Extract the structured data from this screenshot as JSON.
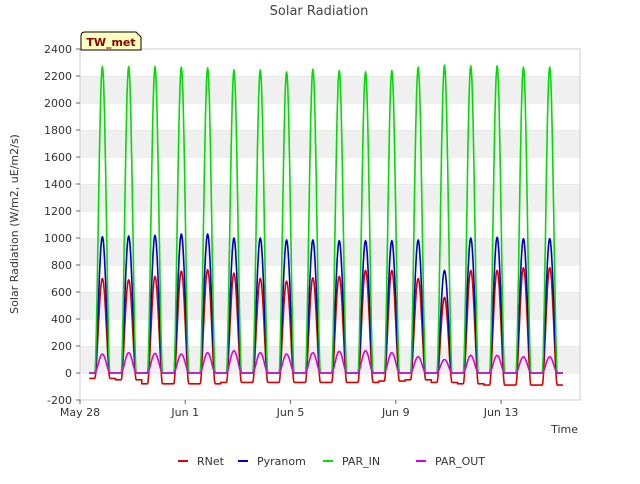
{
  "chart_data": {
    "type": "line",
    "title": "Solar Radiation",
    "xlabel": "Time",
    "ylabel": "Solar Radiation (W/m2, uE/m2/s)",
    "station_badge": "TW_met",
    "ylim": [
      -200,
      2400
    ],
    "yticks": [
      -200,
      0,
      200,
      400,
      600,
      800,
      1000,
      1200,
      1400,
      1600,
      1800,
      2000,
      2200,
      2400
    ],
    "xlim_days": [
      0,
      19
    ],
    "xticks": [
      {
        "label": "May 28",
        "day": 0
      },
      {
        "label": "Jun 1",
        "day": 4
      },
      {
        "label": "Jun 5",
        "day": 8
      },
      {
        "label": "Jun 9",
        "day": 12
      },
      {
        "label": "Jun 13",
        "day": 16
      }
    ],
    "grid": "horizontal bands",
    "legend_position": "bottom-center",
    "days": [
      "May 28",
      "May 29",
      "May 30",
      "May 31",
      "Jun 1",
      "Jun 2",
      "Jun 3",
      "Jun 4",
      "Jun 5",
      "Jun 6",
      "Jun 7",
      "Jun 8",
      "Jun 9",
      "Jun 10",
      "Jun 11",
      "Jun 12",
      "Jun 13",
      "Jun 14"
    ],
    "series": [
      {
        "name": "RNet",
        "color": "#dd0000",
        "daily_peak": [
          700,
          690,
          715,
          755,
          765,
          740,
          700,
          680,
          705,
          715,
          760,
          760,
          700,
          560,
          760,
          760,
          780,
          780
        ],
        "night_value": [
          -40,
          -50,
          -80,
          -80,
          -80,
          -70,
          -70,
          -70,
          -70,
          -70,
          -70,
          -60,
          -50,
          -70,
          -80,
          -90,
          -90,
          -90
        ]
      },
      {
        "name": "Pyranom",
        "color": "#0000cc",
        "daily_peak": [
          1010,
          1015,
          1020,
          1030,
          1030,
          1000,
          1000,
          985,
          985,
          980,
          980,
          980,
          985,
          760,
          1000,
          1005,
          995,
          995
        ],
        "night_value": [
          0,
          0,
          0,
          0,
          0,
          0,
          0,
          0,
          0,
          0,
          0,
          0,
          0,
          0,
          0,
          0,
          0,
          0
        ]
      },
      {
        "name": "PAR_IN",
        "color": "#00dd00",
        "daily_peak": [
          2270,
          2270,
          2270,
          2265,
          2260,
          2245,
          2245,
          2230,
          2250,
          2240,
          2230,
          2240,
          2265,
          2280,
          2275,
          2275,
          2265,
          2265
        ],
        "night_value": [
          0,
          0,
          0,
          0,
          0,
          0,
          0,
          0,
          0,
          0,
          0,
          0,
          0,
          0,
          0,
          0,
          0,
          0
        ]
      },
      {
        "name": "PAR_OUT",
        "color": "#dd00dd",
        "daily_peak": [
          140,
          150,
          145,
          140,
          150,
          165,
          150,
          140,
          150,
          160,
          165,
          150,
          120,
          100,
          130,
          130,
          120,
          120
        ],
        "night_value": [
          0,
          0,
          0,
          0,
          0,
          0,
          0,
          0,
          0,
          0,
          0,
          0,
          0,
          0,
          0,
          0,
          0,
          0
        ]
      }
    ]
  }
}
